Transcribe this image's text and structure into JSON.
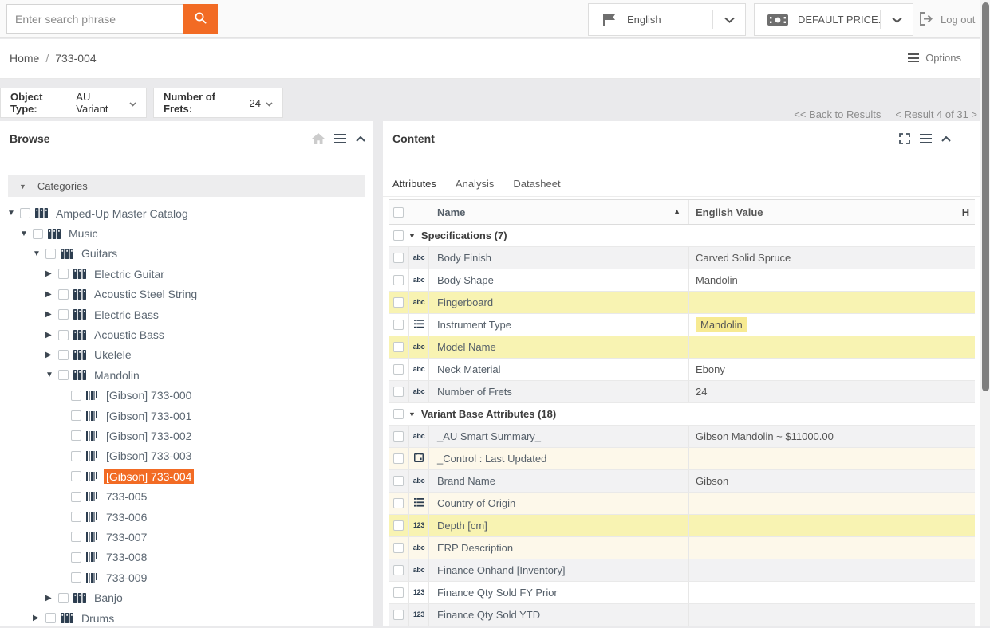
{
  "colors": {
    "accent_orange": "#f26b24",
    "icon_navy": "#2d3e50",
    "row_yellow": "#f8f3b2",
    "row_cream": "#fdf8ea",
    "row_gray": "#f2f2f3",
    "value_chip_yellow": "#f7ea92"
  },
  "topbar": {
    "search_placeholder": "Enter search phrase",
    "search_icon": "magnifier-icon",
    "language_label": "English",
    "language_icon": "flag-icon",
    "price_list_label": "DEFAULT PRICE...",
    "price_list_icon": "banknote-icon",
    "logout_label": "Log out",
    "logout_icon": "logout-icon"
  },
  "breadcrumb": {
    "home": "Home",
    "separator": "/",
    "current": "733-004",
    "options_label": "Options"
  },
  "filters": [
    {
      "label": "Object Type:",
      "value": "AU Variant"
    },
    {
      "label": "Number of Frets:",
      "value": "24"
    }
  ],
  "results_nav": {
    "back": "<< Back to Results",
    "position": "< Result 4 of 31 >"
  },
  "browse": {
    "title": "Browse",
    "categories_label": "Categories",
    "tree": [
      {
        "label": "Amped-Up Master Catalog",
        "level": 0,
        "icon": "catalog",
        "exp": "open"
      },
      {
        "label": "Music",
        "level": 1,
        "icon": "catalog",
        "exp": "open"
      },
      {
        "label": "Guitars",
        "level": 2,
        "icon": "catalog",
        "exp": "open"
      },
      {
        "label": "Electric Guitar",
        "level": 3,
        "icon": "catalog",
        "exp": "closed"
      },
      {
        "label": "Acoustic Steel String",
        "level": 3,
        "icon": "catalog",
        "exp": "closed"
      },
      {
        "label": "Electric Bass",
        "level": 3,
        "icon": "catalog",
        "exp": "closed"
      },
      {
        "label": "Acoustic Bass",
        "level": 3,
        "icon": "catalog",
        "exp": "closed"
      },
      {
        "label": "Ukelele",
        "level": 3,
        "icon": "catalog",
        "exp": "closed"
      },
      {
        "label": "Mandolin",
        "level": 3,
        "icon": "catalog",
        "exp": "open"
      },
      {
        "label": "[Gibson] 733-000",
        "level": 4,
        "icon": "item",
        "exp": "none"
      },
      {
        "label": "[Gibson] 733-001",
        "level": 4,
        "icon": "item",
        "exp": "none"
      },
      {
        "label": "[Gibson] 733-002",
        "level": 4,
        "icon": "item",
        "exp": "none"
      },
      {
        "label": "[Gibson] 733-003",
        "level": 4,
        "icon": "item",
        "exp": "none"
      },
      {
        "label": "[Gibson] 733-004",
        "level": 4,
        "icon": "item",
        "exp": "none",
        "selected": true
      },
      {
        "label": "733-005",
        "level": 4,
        "icon": "item",
        "exp": "none"
      },
      {
        "label": "733-006",
        "level": 4,
        "icon": "item",
        "exp": "none"
      },
      {
        "label": "733-007",
        "level": 4,
        "icon": "item",
        "exp": "none"
      },
      {
        "label": "733-008",
        "level": 4,
        "icon": "item",
        "exp": "none"
      },
      {
        "label": "733-009",
        "level": 4,
        "icon": "item",
        "exp": "none"
      },
      {
        "label": "Banjo",
        "level": 3,
        "icon": "catalog",
        "exp": "closed"
      },
      {
        "label": "Drums",
        "level": 2,
        "icon": "catalog",
        "exp": "closed"
      }
    ]
  },
  "content": {
    "title": "Content",
    "tabs": [
      "Attributes",
      "Analysis",
      "Datasheet"
    ],
    "active_tab": "Attributes",
    "table": {
      "columns": {
        "name": "Name",
        "value": "English Value",
        "h": "H"
      },
      "sort": {
        "column": "Name",
        "direction": "asc"
      },
      "rows": [
        {
          "kind": "group",
          "label": "Specifications (7)"
        },
        {
          "kind": "attr",
          "type": "text",
          "name": "Body Finish",
          "value": "Carved Solid Spruce",
          "bg": "gray"
        },
        {
          "kind": "attr",
          "type": "text",
          "name": "Body Shape",
          "value": "Mandolin",
          "bg": "white"
        },
        {
          "kind": "attr",
          "type": "text",
          "name": "Fingerboard",
          "value": "",
          "bg": "yellow"
        },
        {
          "kind": "attr",
          "type": "list",
          "name": "Instrument Type",
          "value": "Mandolin",
          "bg": "white",
          "chip": true
        },
        {
          "kind": "attr",
          "type": "text",
          "name": "Model Name",
          "value": "",
          "bg": "yellow"
        },
        {
          "kind": "attr",
          "type": "text",
          "name": "Neck Material",
          "value": "Ebony",
          "bg": "white"
        },
        {
          "kind": "attr",
          "type": "text",
          "name": "Number of Frets",
          "value": "24",
          "bg": "gray"
        },
        {
          "kind": "group",
          "label": "Variant Base Attributes (18)"
        },
        {
          "kind": "attr",
          "type": "text",
          "name": "_AU Smart Summary_",
          "value": "Gibson Mandolin ~ $11000.00",
          "bg": "gray"
        },
        {
          "kind": "attr",
          "type": "date",
          "name": "_Control : Last Updated",
          "value": "",
          "bg": "cream"
        },
        {
          "kind": "attr",
          "type": "text",
          "name": "Brand Name",
          "value": "Gibson",
          "bg": "gray"
        },
        {
          "kind": "attr",
          "type": "list",
          "name": "Country of Origin",
          "value": "",
          "bg": "cream"
        },
        {
          "kind": "attr",
          "type": "number",
          "name": "Depth [cm]",
          "value": "",
          "bg": "yellow"
        },
        {
          "kind": "attr",
          "type": "text",
          "name": "ERP Description",
          "value": "",
          "bg": "cream"
        },
        {
          "kind": "attr",
          "type": "text",
          "name": "Finance Onhand [Inventory]",
          "value": "",
          "bg": "gray"
        },
        {
          "kind": "attr",
          "type": "number",
          "name": "Finance Qty Sold FY Prior",
          "value": "",
          "bg": "white"
        },
        {
          "kind": "attr",
          "type": "number",
          "name": "Finance Qty Sold YTD",
          "value": "",
          "bg": "gray"
        }
      ]
    }
  }
}
